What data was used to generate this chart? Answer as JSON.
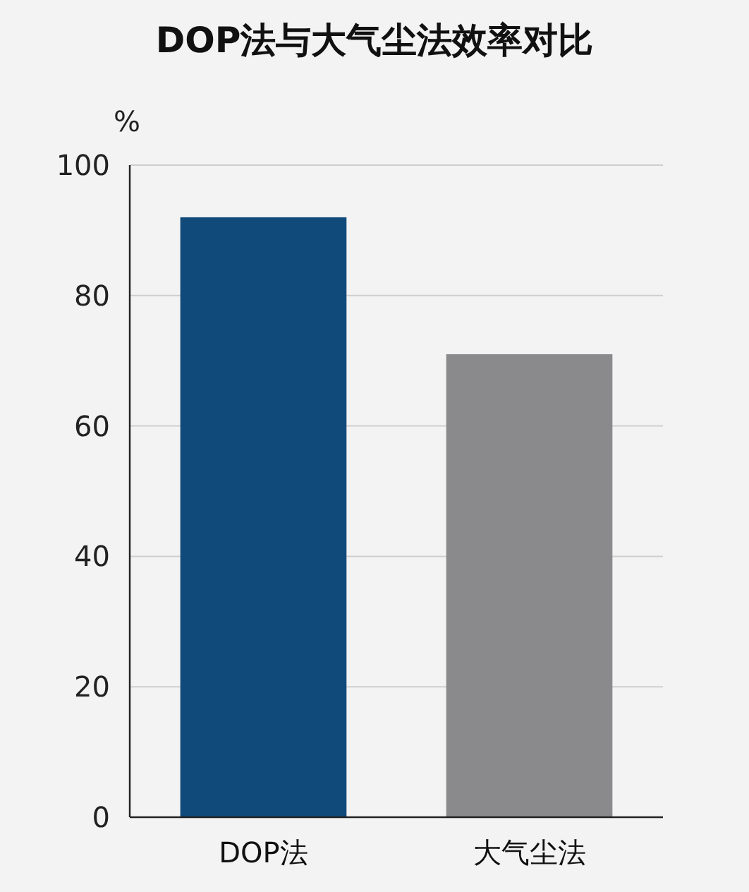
{
  "chart_data": {
    "type": "bar",
    "title": "DOP法与大气尘法效率对比",
    "ylabel": "%",
    "categories": [
      "DOP法",
      "大气尘法"
    ],
    "values": [
      92,
      71
    ],
    "colors": [
      "#0f4a7a",
      "#8a8a8c"
    ],
    "ylim": [
      0,
      100
    ],
    "yticks": [
      0,
      20,
      40,
      60,
      80,
      100
    ],
    "grid": "y"
  }
}
